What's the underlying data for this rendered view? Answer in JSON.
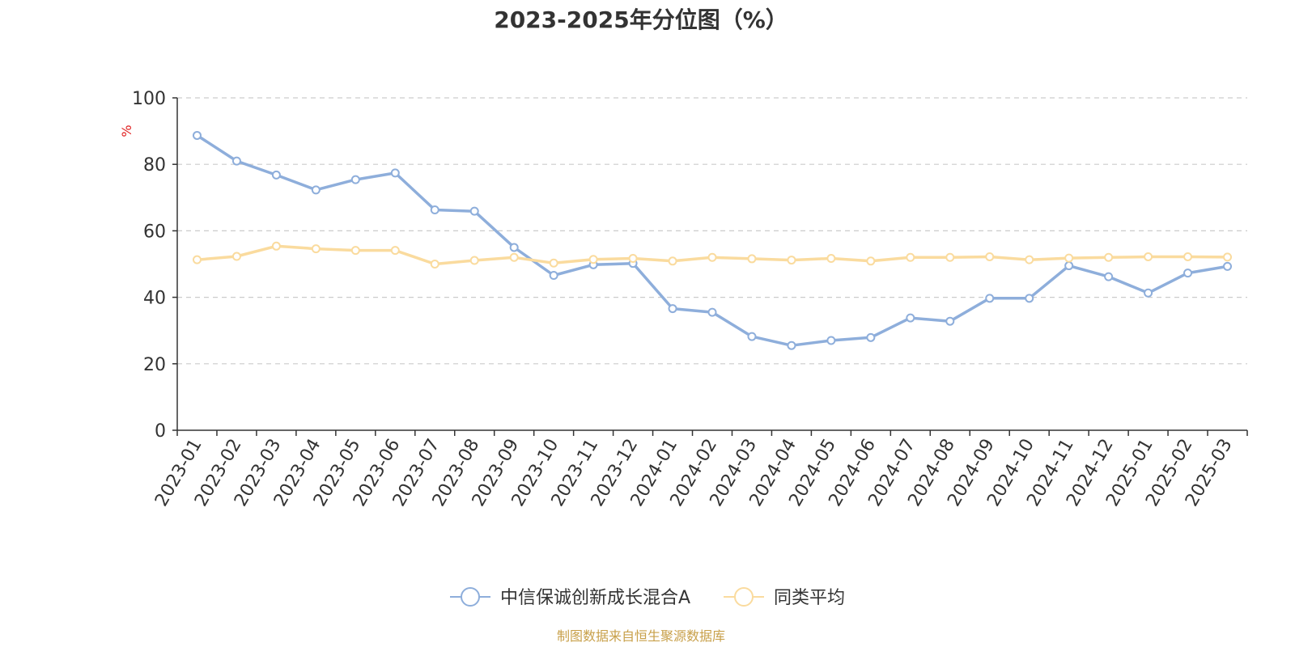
{
  "chart_data": {
    "type": "line",
    "title": "2023-2025年分位图（%）",
    "ylabel": "%",
    "xlabel": "",
    "ylim": [
      0,
      100
    ],
    "yticks": [
      0,
      20,
      40,
      60,
      80,
      100
    ],
    "grid": true,
    "legend_position": "bottom",
    "categories": [
      "2023-01",
      "2023-02",
      "2023-03",
      "2023-04",
      "2023-05",
      "2023-06",
      "2023-07",
      "2023-08",
      "2023-09",
      "2023-10",
      "2023-11",
      "2023-12",
      "2024-01",
      "2024-02",
      "2024-03",
      "2024-04",
      "2024-05",
      "2024-06",
      "2024-07",
      "2024-08",
      "2024-09",
      "2024-10",
      "2024-11",
      "2024-12",
      "2025-01",
      "2025-02",
      "2025-03"
    ],
    "series": [
      {
        "name": "中信保诚创新成长混合A",
        "color": "#8eaedb",
        "values": [
          88.7,
          81.0,
          76.8,
          72.3,
          75.4,
          77.4,
          66.3,
          65.9,
          55.0,
          46.6,
          49.8,
          50.2,
          36.6,
          35.5,
          28.2,
          25.5,
          27.0,
          27.9,
          33.8,
          32.8,
          39.7,
          39.7,
          49.5,
          46.2,
          41.3,
          47.3,
          49.3
        ]
      },
      {
        "name": "同类平均",
        "color": "#fadb9e",
        "values": [
          51.3,
          52.3,
          55.4,
          54.6,
          54.1,
          54.1,
          50.0,
          51.1,
          52.0,
          50.3,
          51.4,
          51.7,
          50.9,
          52.0,
          51.6,
          51.2,
          51.7,
          50.9,
          52.0,
          52.0,
          52.2,
          51.3,
          51.8,
          52.0,
          52.2,
          52.2,
          52.1
        ]
      }
    ],
    "colors": {
      "axis": "#333333",
      "grid": "#cccccc",
      "ylabel": "#e02020",
      "source": "#c8a04a",
      "title": "#333333"
    }
  },
  "source_note": "制图数据来自恒生聚源数据库"
}
